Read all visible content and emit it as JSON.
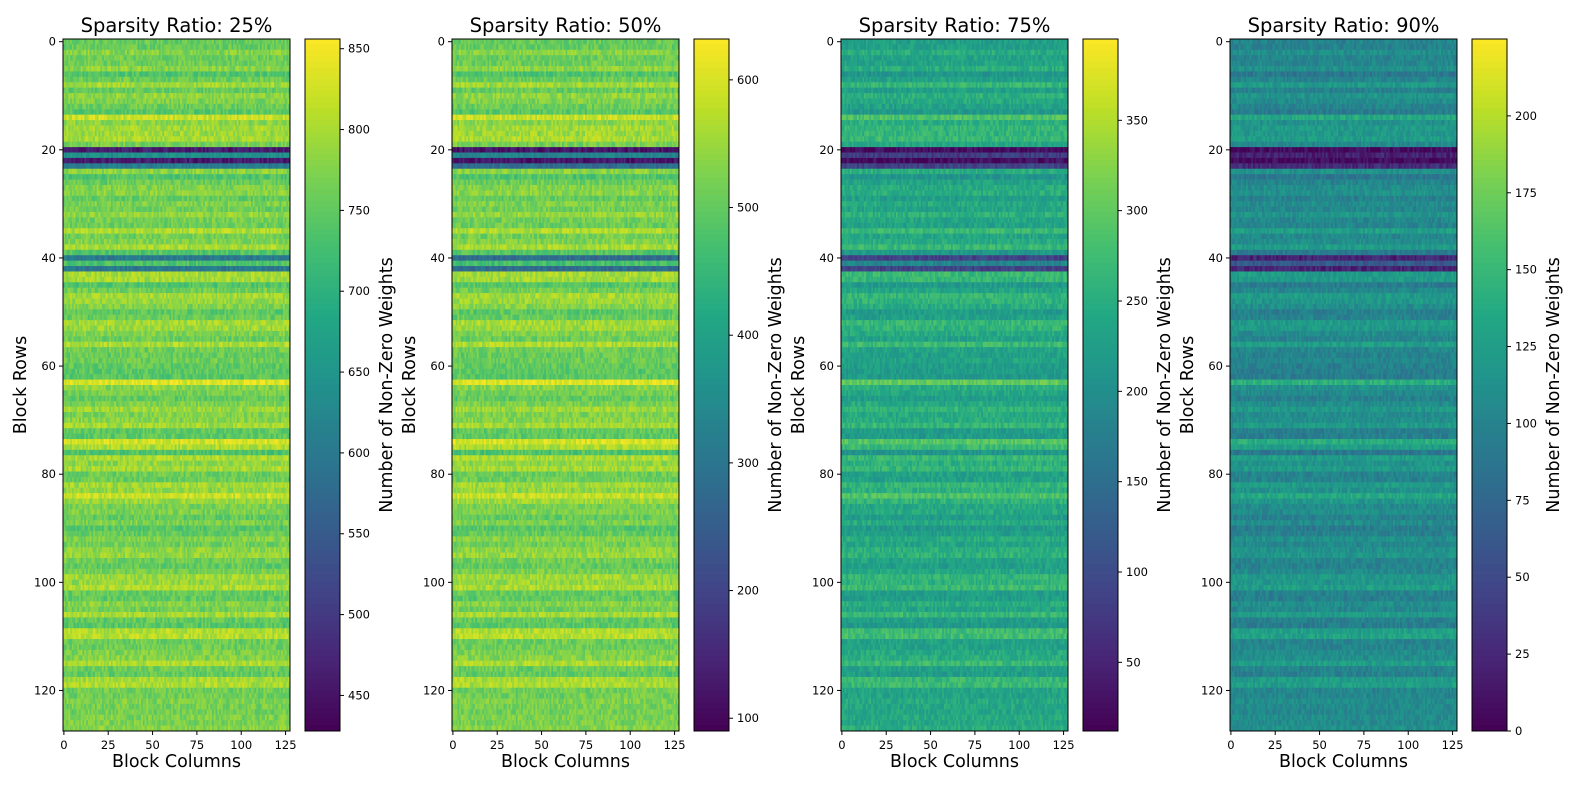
{
  "chart_data": [
    {
      "type": "heatmap",
      "title": "Sparsity Ratio: 25%",
      "xlabel": "Block Columns",
      "ylabel": "Block Rows",
      "colorbar_label": "Number of Non-Zero Weights",
      "colormap": "viridis",
      "shape": [
        128,
        128
      ],
      "xticks": [
        "0",
        "25",
        "50",
        "75",
        "100",
        "125"
      ],
      "yticks": [
        "0",
        "20",
        "40",
        "60",
        "80",
        "100",
        "120"
      ],
      "vmin": 428,
      "vmax": 856,
      "cbar_ticks": [
        450,
        500,
        550,
        600,
        650,
        700,
        750,
        800,
        850
      ],
      "row_profile": {
        "default_level": 0.8,
        "dark_rows": {
          "20": 0.08,
          "21": 0.5,
          "22": 0.08,
          "23": 0.42,
          "40": 0.4,
          "41": 0.72,
          "42": 0.4
        },
        "bright_rows": [
          14,
          63,
          74,
          84,
          109,
          110
        ]
      }
    },
    {
      "type": "heatmap",
      "title": "Sparsity Ratio: 50%",
      "xlabel": "Block Columns",
      "ylabel": "Block Rows",
      "colorbar_label": "Number of Non-Zero Weights",
      "colormap": "viridis",
      "shape": [
        128,
        128
      ],
      "xticks": [
        "0",
        "25",
        "50",
        "75",
        "100",
        "125"
      ],
      "yticks": [
        "0",
        "20",
        "40",
        "60",
        "80",
        "100",
        "120"
      ],
      "vmin": 90,
      "vmax": 632,
      "cbar_ticks": [
        100,
        200,
        300,
        400,
        500,
        600
      ],
      "row_profile": {
        "default_level": 0.8,
        "dark_rows": {
          "20": 0.06,
          "21": 0.45,
          "22": 0.06,
          "23": 0.35,
          "40": 0.35,
          "41": 0.7,
          "42": 0.35
        },
        "bright_rows": [
          14,
          63,
          74,
          84,
          109,
          110
        ]
      }
    },
    {
      "type": "heatmap",
      "title": "Sparsity Ratio: 75%",
      "xlabel": "Block Columns",
      "ylabel": "Block Rows",
      "colorbar_label": "Number of Non-Zero Weights",
      "colormap": "viridis",
      "shape": [
        128,
        128
      ],
      "xticks": [
        "0",
        "25",
        "50",
        "75",
        "100",
        "125"
      ],
      "yticks": [
        "0",
        "20",
        "40",
        "60",
        "80",
        "100",
        "120"
      ],
      "vmin": 12,
      "vmax": 395,
      "cbar_ticks": [
        50,
        100,
        150,
        200,
        250,
        300,
        350
      ],
      "row_profile": {
        "default_level": 0.6,
        "dark_rows": {
          "20": 0.03,
          "21": 0.18,
          "22": 0.03,
          "23": 0.2,
          "40": 0.2,
          "41": 0.45,
          "42": 0.2
        },
        "bright_rows": [
          14,
          63,
          74,
          84,
          109,
          110
        ]
      }
    },
    {
      "type": "heatmap",
      "title": "Sparsity Ratio: 90%",
      "xlabel": "Block Columns",
      "ylabel": "Block Rows",
      "colorbar_label": "Number of Non-Zero Weights",
      "colormap": "viridis",
      "shape": [
        128,
        128
      ],
      "xticks": [
        "0",
        "25",
        "50",
        "75",
        "100",
        "125"
      ],
      "yticks": [
        "0",
        "20",
        "40",
        "60",
        "80",
        "100",
        "120"
      ],
      "vmin": 0,
      "vmax": 225,
      "cbar_ticks": [
        0,
        25,
        50,
        75,
        100,
        125,
        150,
        175,
        200
      ],
      "row_profile": {
        "default_level": 0.48,
        "dark_rows": {
          "20": 0.03,
          "21": 0.1,
          "22": 0.03,
          "23": 0.12,
          "40": 0.1,
          "41": 0.28,
          "42": 0.1
        },
        "bright_rows": [
          14,
          63,
          74,
          84,
          109,
          110
        ]
      }
    }
  ]
}
